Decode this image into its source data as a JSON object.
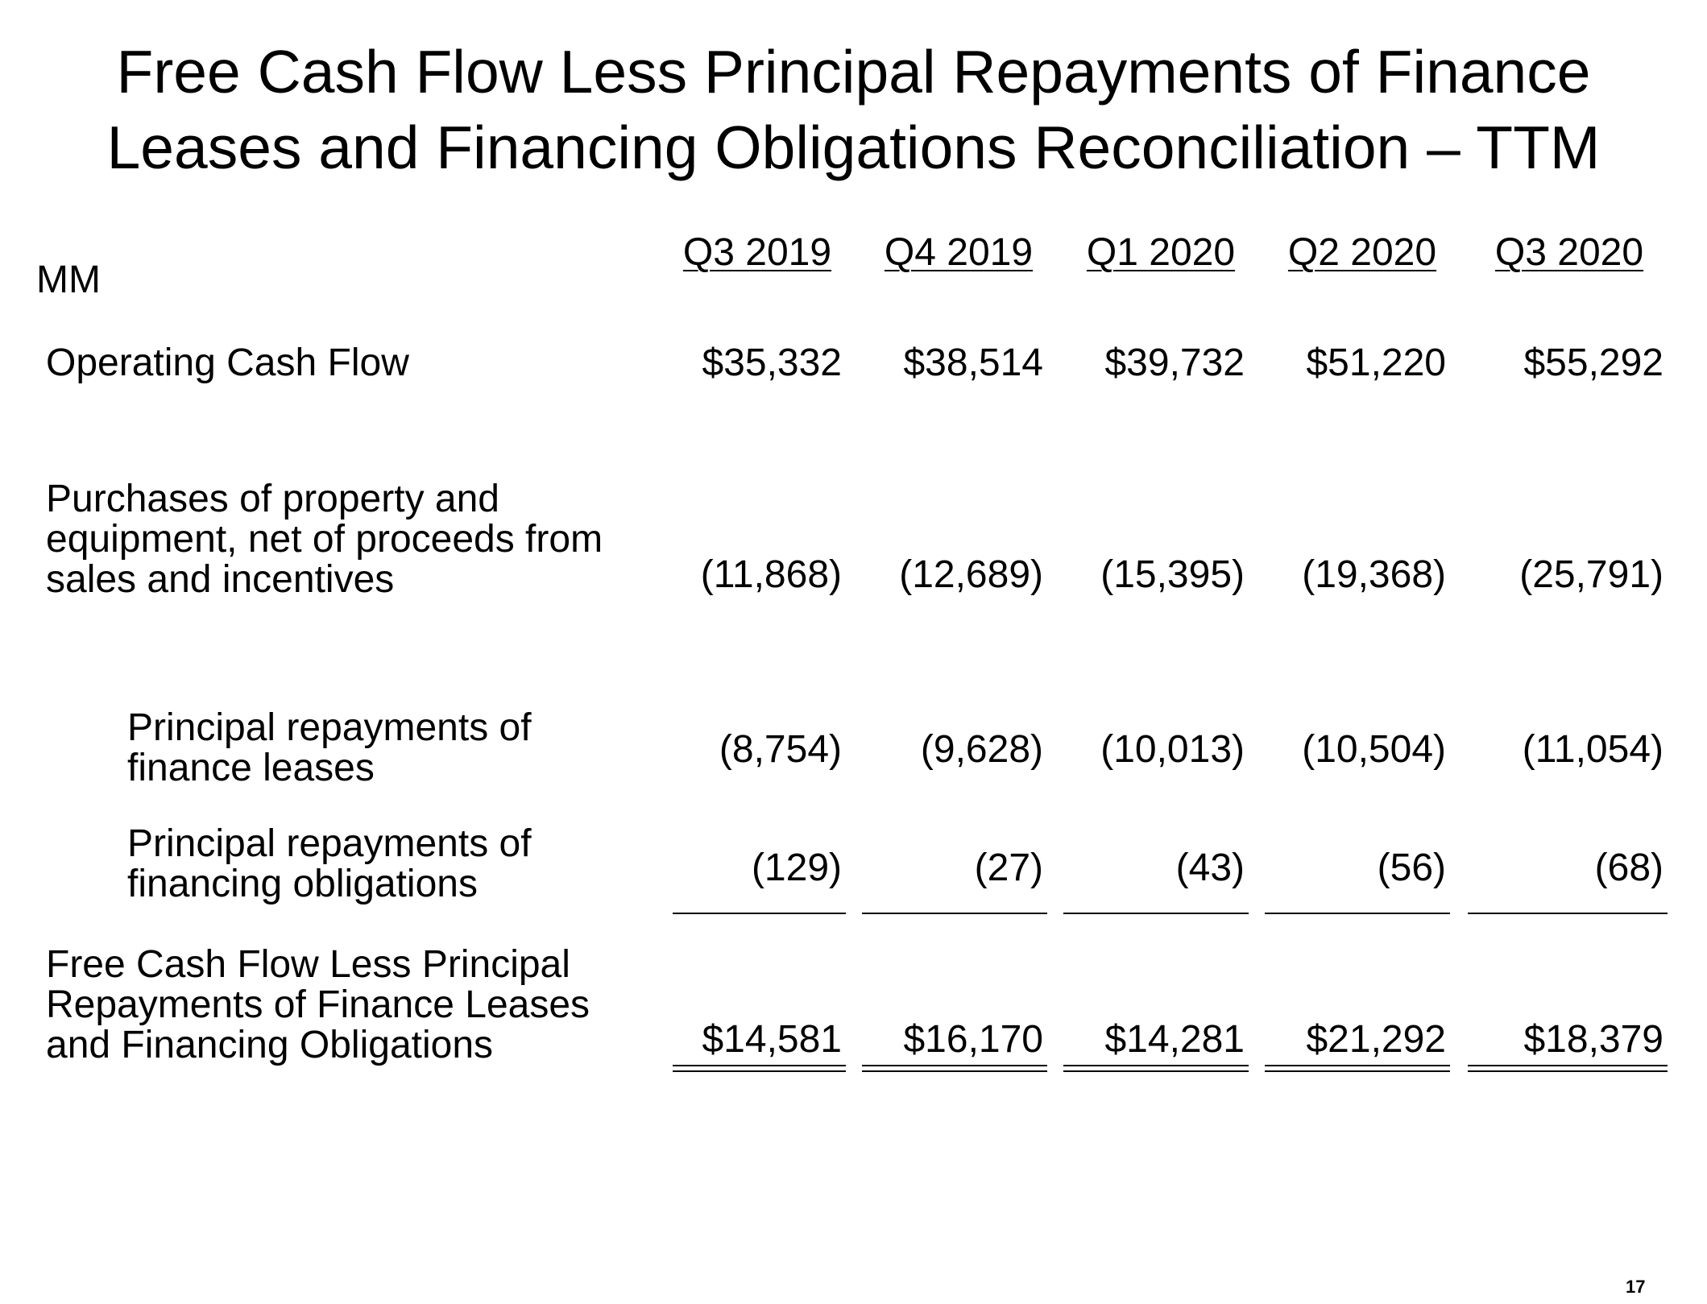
{
  "title": {
    "line1": "Free Cash Flow Less Principal Repayments of Finance",
    "line2": "Leases and Financing Obligations Reconciliation – TTM"
  },
  "unit_label": "MM",
  "columns": [
    "Q3 2019",
    "Q4 2019",
    "Q1 2020",
    "Q2 2020",
    "Q3 2020"
  ],
  "rows": [
    {
      "label_lines": [
        "Operating Cash Flow"
      ],
      "values": [
        "$35,332",
        "$38,514",
        "$39,732",
        "$51,220",
        "$55,292"
      ]
    },
    {
      "label_lines": [
        "Purchases of property and",
        "equipment, net of proceeds from",
        "sales and incentives"
      ],
      "values": [
        "(11,868)",
        "(12,689)",
        "(15,395)",
        "(19,368)",
        "(25,791)"
      ]
    },
    {
      "label_lines": [
        "Principal repayments of",
        "finance leases"
      ],
      "values": [
        "(8,754)",
        "(9,628)",
        "(10,013)",
        "(10,504)",
        "(11,054)"
      ]
    },
    {
      "label_lines": [
        "Principal repayments of",
        "financing obligations"
      ],
      "values": [
        "(129)",
        "(27)",
        "(43)",
        "(56)",
        "(68)"
      ]
    },
    {
      "label_lines": [
        "Free Cash Flow Less Principal",
        "Repayments of Finance Leases",
        "and Financing Obligations"
      ],
      "values": [
        "$14,581",
        "$16,170",
        "$14,281",
        "$21,292",
        "$18,379"
      ]
    }
  ],
  "page_number": "17"
}
